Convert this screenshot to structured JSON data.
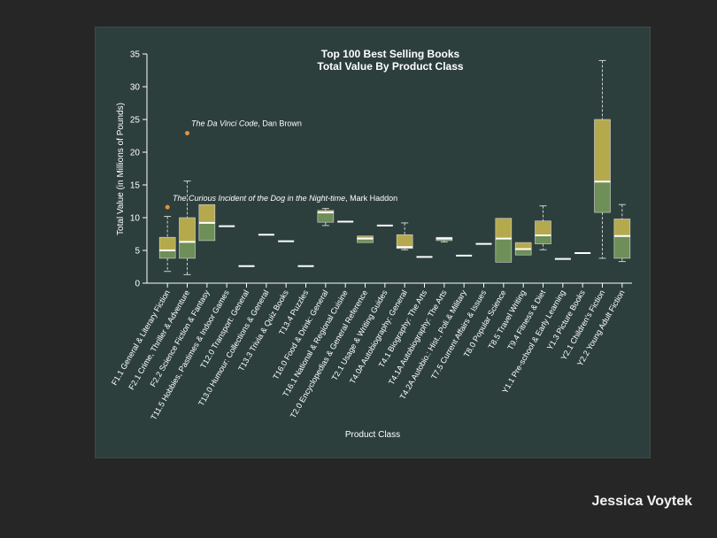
{
  "author": "Jessica Voytek",
  "colors": {
    "panel": "#2c3f3d",
    "upper_box": "#b5a94d",
    "lower_box": "#6e8f58",
    "box_border": "#d8d8d8",
    "median": "#ffffff",
    "outlier": "#e8923a",
    "text": "#ffffff"
  },
  "chart_data": {
    "type": "boxplot",
    "title": [
      "Top 100 Best Selling Books",
      "Total Value By Product Class"
    ],
    "xlabel": "Product Class",
    "ylabel": "Total Value (in Millions of Pounds)",
    "ylim": [
      0,
      35
    ],
    "yticks": [
      0,
      5,
      10,
      15,
      20,
      25,
      30,
      35
    ],
    "grid": false,
    "categories": [
      {
        "label": "F1.1  General & Literary Fiction",
        "min": 1.8,
        "q1": 3.8,
        "median": 5.0,
        "q3": 7.0,
        "max": 10.2
      },
      {
        "label": "F2.1  Crime, Thriller & Adventure",
        "min": 1.3,
        "q1": 3.8,
        "median": 6.3,
        "q3": 10.0,
        "max": 15.6
      },
      {
        "label": "F2.2  Science Fiction & Fantasy",
        "min": 6.5,
        "q1": 6.5,
        "median": 9.2,
        "q3": 12.0,
        "max": 12.0
      },
      {
        "label": "T11.5  Hobbies, Pastimes & Indoor Games",
        "single": 8.7
      },
      {
        "label": "T12.0  Transport: General",
        "single": 2.6
      },
      {
        "label": "T13.0  Humour: Collections & General",
        "single": 7.4
      },
      {
        "label": "T13.3  Trivia & Quiz Books",
        "single": 6.4
      },
      {
        "label": "T13.4  Puzzles",
        "single": 2.6
      },
      {
        "label": "T16.0  Food & Drink: General",
        "min": 8.8,
        "q1": 9.3,
        "median": 10.8,
        "q3": 11.1,
        "max": 11.4
      },
      {
        "label": "T16.1  National & Regional Cuisine",
        "single": 9.4
      },
      {
        "label": "T2.0  Encyclopedias & General Reference",
        "min": 6.2,
        "q1": 6.2,
        "median": 6.8,
        "q3": 7.2,
        "max": 7.2
      },
      {
        "label": "T2.1  Usage & Writing Guides",
        "single": 8.8
      },
      {
        "label": "T4.0A  Autobiography: General",
        "min": 5.1,
        "q1": 5.3,
        "median": 5.5,
        "q3": 7.4,
        "max": 9.2
      },
      {
        "label": "T4.1  Biography: The Arts",
        "single": 4.0
      },
      {
        "label": "T4.1A  Autobiography: The Arts",
        "min": 6.3,
        "q1": 6.5,
        "median": 6.8,
        "q3": 7.0,
        "max": 7.0
      },
      {
        "label": "T4.2A  Autobio.: Hist., Poli.& Military",
        "single": 4.2
      },
      {
        "label": "T7.5  Current Affairs & Issues",
        "single": 6.0
      },
      {
        "label": "T8.0  Popular Science",
        "min": 3.2,
        "q1": 3.2,
        "median": 6.8,
        "q3": 9.9,
        "max": 9.9
      },
      {
        "label": "T8.5  Travel Writing",
        "min": 4.3,
        "q1": 4.3,
        "median": 5.2,
        "q3": 6.2,
        "max": 6.2
      },
      {
        "label": "T9.4  Fitness & Diet",
        "min": 5.1,
        "q1": 6.0,
        "median": 7.3,
        "q3": 9.5,
        "max": 11.8
      },
      {
        "label": "Y1.1  Pre-school & Early Learning",
        "single": 3.7
      },
      {
        "label": "Y1.3  Picture Books",
        "single": 4.6
      },
      {
        "label": "Y2.1  Children's Fiction",
        "min": 3.8,
        "q1": 10.8,
        "median": 15.5,
        "q3": 25.0,
        "max": 34.0
      },
      {
        "label": "Y2.2  Young Adult Fiction",
        "min": 3.3,
        "q1": 3.8,
        "median": 7.2,
        "q3": 9.8,
        "max": 12.0
      }
    ],
    "outliers": [
      {
        "category": 1,
        "y": 22.9,
        "title": "The Da Vinci Code",
        "by": ", Dan Brown"
      },
      {
        "category": 0,
        "y": 11.6,
        "title": "The Curious Incident of the Dog in the Night-time",
        "by": ", Mark Haddon"
      }
    ]
  }
}
